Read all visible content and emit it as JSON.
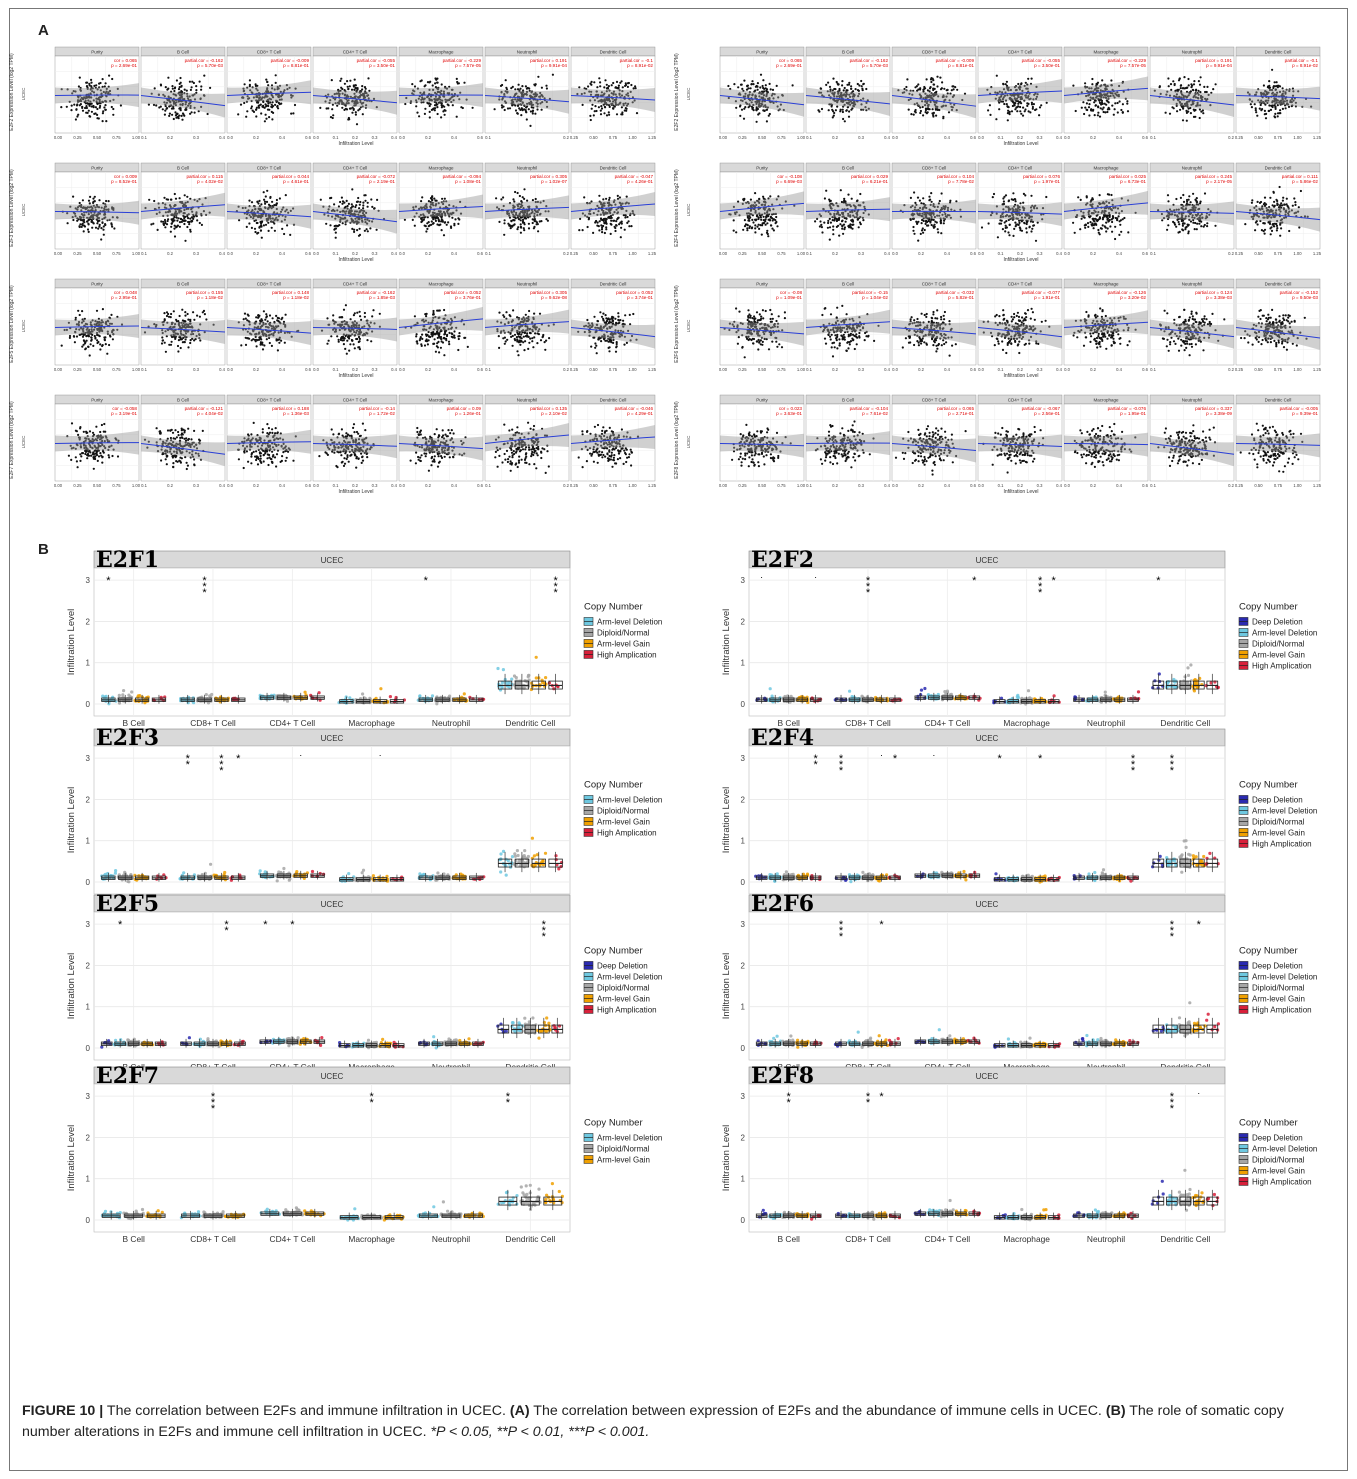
{
  "panel_a": {
    "letter": "A",
    "cell_types": [
      "Purity",
      "B Cell",
      "CD8+ T Cell",
      "CD4+ T Cell",
      "Macrophage",
      "Neutrophil",
      "Dendritic Cell"
    ],
    "x_axis_label": "Infiltration Level",
    "cancer_label": "UCEC",
    "x_ticks": [
      [
        "0.00",
        "0.25",
        "0.50",
        "0.75",
        "1.00"
      ],
      [
        "0.1",
        "0.2",
        "0.3",
        "0.4"
      ],
      [
        "0.0",
        "0.2",
        "0.4",
        "0.6"
      ],
      [
        "0.0",
        "0.1",
        "0.2",
        "0.3",
        "0.4"
      ],
      [
        "0.0",
        "0.2",
        "0.4",
        "0.6"
      ],
      [
        "0.1",
        "0.2"
      ],
      [
        "0.25",
        "0.50",
        "0.75",
        "1.00",
        "1.25"
      ]
    ],
    "plots": [
      {
        "gene": "E2F2",
        "ylabel": "E2F2 Expression Level (log2 TPM)",
        "stats": [
          [
            "cor = 0.065",
            "p = 2.69e-01"
          ],
          [
            "partial.cor = -0.162",
            "p = 5.70e-03"
          ],
          [
            "partial.cor = -0.009",
            "p = 8.81e-01"
          ],
          [
            "partial.cor = -0.055",
            "p = 3.50e-01"
          ],
          [
            "partial.cor = -0.229",
            "p = 7.57e-05"
          ],
          [
            "partial.cor = 0.191",
            "p = 9.91e-04"
          ],
          [
            "partial.cor = -0.1",
            "p = 8.91e-02"
          ]
        ]
      },
      {
        "gene": "E2F2",
        "ylabel": "E2F2 Expression Level (log2 TPM)",
        "stats": [
          [
            "cor = 0.065",
            "p = 2.69e-01"
          ],
          [
            "partial.cor = -0.162",
            "p = 5.70e-03"
          ],
          [
            "partial.cor = -0.009",
            "p = 8.81e-01"
          ],
          [
            "partial.cor = -0.055",
            "p = 3.50e-01"
          ],
          [
            "partial.cor = -0.229",
            "p = 7.57e-05"
          ],
          [
            "partial.cor = 0.191",
            "p = 9.91e-04"
          ],
          [
            "partial.cor = -0.1",
            "p = 8.91e-02"
          ]
        ]
      },
      {
        "gene": "E2F3",
        "ylabel": "E2F3 Expression Level (log2 TPM)",
        "stats": [
          [
            "cor = 0.009",
            "p = 8.52e-01"
          ],
          [
            "partial.cor = 0.115",
            "p = 4.02e-02"
          ],
          [
            "partial.cor = 0.044",
            "p = 4.61e-01"
          ],
          [
            "partial.cor = -0.072",
            "p = 2.19e-01"
          ],
          [
            "partial.cor = -0.094",
            "p = 1.08e-01"
          ],
          [
            "partial.cor = 0.305",
            "p = 1.02e-07"
          ],
          [
            "partial.cor = -0.047",
            "p = 4.26e-01"
          ]
        ]
      },
      {
        "gene": "E2F4",
        "ylabel": "E2F4 Expression Level (log2 TPM)",
        "stats": [
          [
            "cor = -0.108",
            "p = 6.69e-03"
          ],
          [
            "partial.cor = 0.029",
            "p = 6.21e-01"
          ],
          [
            "partial.cor = 0.104",
            "p = 7.78e-02"
          ],
          [
            "partial.cor = 0.076",
            "p = 1.97e-01"
          ],
          [
            "partial.cor = 0.025",
            "p = 6.73e-01"
          ],
          [
            "partial.cor = 0.245",
            "p = 2.17e-05"
          ],
          [
            "partial.cor = 0.111",
            "p = 5.86e-02"
          ]
        ]
      },
      {
        "gene": "E2F5",
        "ylabel": "E2F5 Expression Level (log2 TPM)",
        "stats": [
          [
            "cor = 0.048",
            "p = 2.95e-01"
          ],
          [
            "partial.cor = 0.155",
            "p = 1.18e-02"
          ],
          [
            "partial.cor = 0.148",
            "p = 1.18e-02"
          ],
          [
            "partial.cor = -0.162",
            "p = 1.85e-03"
          ],
          [
            "partial.cor = 0.052",
            "p = 3.76e-01"
          ],
          [
            "partial.cor = 0.305",
            "p = 9.62e-08"
          ],
          [
            "partial.cor = 0.052",
            "p = 3.74e-01"
          ]
        ]
      },
      {
        "gene": "E2F6",
        "ylabel": "E2F6 Expression Level (log2 TPM)",
        "stats": [
          [
            "cor = -0.08",
            "p = 1.09e-01"
          ],
          [
            "partial.cor = -0.15",
            "p = 1.04e-02"
          ],
          [
            "partial.cor = -0.032",
            "p = 5.82e-01"
          ],
          [
            "partial.cor = -0.077",
            "p = 1.91e-01"
          ],
          [
            "partial.cor = -0.126",
            "p = 3.20e-02"
          ],
          [
            "partial.cor = 0.124",
            "p = 3.38e-03"
          ],
          [
            "partial.cor = -0.152",
            "p = 9.50e-03"
          ]
        ]
      },
      {
        "gene": "E2F7",
        "ylabel": "E2F7 Expression Level (log2 TPM)",
        "stats": [
          [
            "cor = -0.058",
            "p = 3.19e-01"
          ],
          [
            "partial.cor = -0.121",
            "p = 4.04e-02"
          ],
          [
            "partial.cor = 0.188",
            "p = 1.36e-03"
          ],
          [
            "partial.cor = -0.14",
            "p = 1.72e-02"
          ],
          [
            "partial.cor = 0.09",
            "p = 1.26e-01"
          ],
          [
            "partial.cor = 0.135",
            "p = 2.10e-02"
          ],
          [
            "partial.cor = -0.046",
            "p = 4.29e-01"
          ]
        ]
      },
      {
        "gene": "E2F8",
        "ylabel": "E2F8 Expression Level (log2 TPM)",
        "stats": [
          [
            "cor = 0.023",
            "p = 3.63e-01"
          ],
          [
            "partial.cor = -0.104",
            "p = 7.61e-02"
          ],
          [
            "partial.cor = 0.065",
            "p = 2.71e-01"
          ],
          [
            "partial.cor = -0.067",
            "p = 2.56e-01"
          ],
          [
            "partial.cor = -0.076",
            "p = 1.95e-01"
          ],
          [
            "partial.cor = 0.337",
            "p = 3.38e-09"
          ],
          [
            "partial.cor = -0.005",
            "p = 9.39e-01"
          ]
        ]
      }
    ]
  },
  "panel_b": {
    "letter": "B",
    "strip_label": "UCEC",
    "y_axis_label": "Infiltration Level",
    "y_ticks": [
      "0",
      "1",
      "2",
      "3"
    ],
    "categories": [
      "B Cell",
      "CD8+ T Cell",
      "CD4+ T Cell",
      "Macrophage",
      "Neutrophil",
      "Dendritic Cell"
    ],
    "legend_title": "Copy Number",
    "colors": {
      "Deep Deletion": "#2a2ab0",
      "Arm-level Deletion": "#6ec8e0",
      "Diploid/Normal": "#a6a6a6",
      "Arm-level Gain": "#f0a000",
      "High Amplication": "#d8203a"
    },
    "plots": [
      {
        "gene": "E2F1",
        "legend": [
          "Arm-level Deletion",
          "Diploid/Normal",
          "Arm-level Gain",
          "High Amplication"
        ],
        "sig": [
          [
            "B Cell",
            0,
            "*"
          ],
          [
            "CD8+ T Cell",
            1,
            "***"
          ],
          [
            "Neutrophil",
            0,
            "*"
          ],
          [
            "Dendritic Cell",
            3,
            "***"
          ]
        ]
      },
      {
        "gene": "E2F2",
        "legend": [
          "Deep Deletion",
          "Arm-level Deletion",
          "Diploid/Normal",
          "Arm-level Gain",
          "High Amplication"
        ],
        "sig": [
          [
            "B Cell",
            0,
            "."
          ],
          [
            "B Cell",
            4,
            "."
          ],
          [
            "CD8+ T Cell",
            2,
            "***"
          ],
          [
            "CD4+ T Cell",
            4,
            "*"
          ],
          [
            "Macrophage",
            3,
            "***"
          ],
          [
            "Macrophage",
            4,
            "*"
          ],
          [
            "Dendritic Cell",
            0,
            "*"
          ]
        ]
      },
      {
        "gene": "E2F3",
        "legend": [
          "Arm-level Deletion",
          "Diploid/Normal",
          "Arm-level Gain",
          "High Amplication"
        ],
        "sig": [
          [
            "CD8+ T Cell",
            0,
            "**"
          ],
          [
            "CD8+ T Cell",
            2,
            "***"
          ],
          [
            "CD8+ T Cell",
            3,
            "*"
          ],
          [
            "CD4+ T Cell",
            2,
            "."
          ],
          [
            "Macrophage",
            2,
            "."
          ]
        ]
      },
      {
        "gene": "E2F4",
        "legend": [
          "Deep Deletion",
          "Arm-level Deletion",
          "Diploid/Normal",
          "Arm-level Gain",
          "High Amplication"
        ],
        "sig": [
          [
            "B Cell",
            4,
            "**"
          ],
          [
            "CD8+ T Cell",
            0,
            "***"
          ],
          [
            "CD8+ T Cell",
            3,
            "."
          ],
          [
            "CD8+ T Cell",
            4,
            "*"
          ],
          [
            "CD4+ T Cell",
            1,
            "."
          ],
          [
            "Macrophage",
            0,
            "*"
          ],
          [
            "Macrophage",
            3,
            "*"
          ],
          [
            "Neutrophil",
            4,
            "***"
          ],
          [
            "Dendritic Cell",
            1,
            "***"
          ]
        ]
      },
      {
        "gene": "E2F5",
        "legend": [
          "Deep Deletion",
          "Arm-level Deletion",
          "Diploid/Normal",
          "Arm-level Gain",
          "High Amplication"
        ],
        "sig": [
          [
            "B Cell",
            1,
            "*"
          ],
          [
            "CD8+ T Cell",
            3,
            "**"
          ],
          [
            "CD4+ T Cell",
            0,
            "*"
          ],
          [
            "CD4+ T Cell",
            2,
            "*"
          ],
          [
            "Dendritic Cell",
            3,
            "***"
          ]
        ]
      },
      {
        "gene": "E2F6",
        "legend": [
          "Deep Deletion",
          "Arm-level Deletion",
          "Diploid/Normal",
          "Arm-level Gain",
          "High Amplication"
        ],
        "sig": [
          [
            "CD8+ T Cell",
            0,
            "***"
          ],
          [
            "CD8+ T Cell",
            3,
            "*"
          ],
          [
            "Dendritic Cell",
            1,
            "***"
          ],
          [
            "Dendritic Cell",
            3,
            "*"
          ]
        ]
      },
      {
        "gene": "E2F7",
        "legend": [
          "Arm-level Deletion",
          "Diploid/Normal",
          "Arm-level Gain"
        ],
        "sig": [
          [
            "CD8+ T Cell",
            1,
            "***"
          ],
          [
            "Macrophage",
            1,
            "**"
          ],
          [
            "Dendritic Cell",
            0,
            "**"
          ]
        ]
      },
      {
        "gene": "E2F8",
        "legend": [
          "Deep Deletion",
          "Arm-level Deletion",
          "Diploid/Normal",
          "Arm-level Gain",
          "High Amplication"
        ],
        "sig": [
          [
            "B Cell",
            2,
            "**"
          ],
          [
            "CD8+ T Cell",
            2,
            "**"
          ],
          [
            "CD8+ T Cell",
            3,
            "*"
          ],
          [
            "Dendritic Cell",
            1,
            "***"
          ],
          [
            "Dendritic Cell",
            3,
            "."
          ]
        ]
      }
    ]
  },
  "caption": {
    "figure_label": "FIGURE 10 |",
    "title": "The correlation between E2Fs and immune infiltration in UCEC.",
    "a_label": "(A)",
    "a_text": "The correlation between expression of E2Fs and the abundance of immune cells in UCEC.",
    "b_label": "(B)",
    "b_text": "The role of somatic copy number alterations in E2Fs and immune cell infiltration in UCEC.",
    "sig_text": "*P < 0.05, **P < 0.01, ***P < 0.001."
  }
}
